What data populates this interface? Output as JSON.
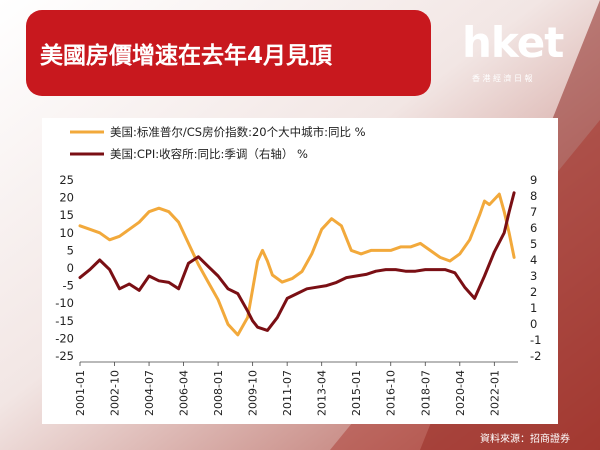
{
  "header": {
    "title": "美國房價增速在去年4月見頂",
    "logo_word": "hket",
    "logo_sub": "香港經濟日報"
  },
  "source": "資料來源：招商證券",
  "colors": {
    "banner": "#c8181e",
    "series_cs": "#f2a93b",
    "series_cpi": "#7a0f14"
  },
  "chart_data": {
    "type": "line",
    "legend": [
      "美国:标准普尔/CS房价指数:20个大中城市:同比 %",
      "美国:CPI:收容所:同比:季调（右轴） %"
    ],
    "legend_position": "top-left",
    "x_ticks": [
      "2001-01",
      "2002-10",
      "2004-07",
      "2006-04",
      "2008-01",
      "2009-10",
      "2011-07",
      "2013-04",
      "2015-01",
      "2016-10",
      "2018-07",
      "2020-04",
      "2022-01"
    ],
    "y_left": {
      "ticks": [
        25,
        20,
        15,
        10,
        5,
        0,
        -5,
        -10,
        -15,
        -20,
        -25
      ],
      "range": [
        -25,
        25
      ]
    },
    "y_right": {
      "ticks": [
        9,
        8,
        7,
        6,
        5,
        4,
        3,
        2,
        1,
        0,
        -1,
        -2
      ],
      "range": [
        -2,
        9
      ]
    },
    "series": [
      {
        "name": "美国:标准普尔/CS房价指数:20个大中城市:同比 %",
        "axis": "left",
        "points": [
          [
            "2001-01",
            12
          ],
          [
            "2001-07",
            11
          ],
          [
            "2002-01",
            10
          ],
          [
            "2002-07",
            8
          ],
          [
            "2003-01",
            9
          ],
          [
            "2003-07",
            11
          ],
          [
            "2004-01",
            13
          ],
          [
            "2004-07",
            16
          ],
          [
            "2005-01",
            17
          ],
          [
            "2005-07",
            16
          ],
          [
            "2006-01",
            13
          ],
          [
            "2006-07",
            7
          ],
          [
            "2007-01",
            1
          ],
          [
            "2007-07",
            -4
          ],
          [
            "2008-01",
            -9
          ],
          [
            "2008-07",
            -16
          ],
          [
            "2009-01",
            -19
          ],
          [
            "2009-07",
            -14
          ],
          [
            "2010-01",
            2
          ],
          [
            "2010-04",
            5
          ],
          [
            "2010-07",
            2
          ],
          [
            "2010-10",
            -2
          ],
          [
            "2011-04",
            -4
          ],
          [
            "2011-10",
            -3
          ],
          [
            "2012-04",
            -1
          ],
          [
            "2012-10",
            4
          ],
          [
            "2013-04",
            11
          ],
          [
            "2013-10",
            14
          ],
          [
            "2014-04",
            12
          ],
          [
            "2014-10",
            5
          ],
          [
            "2015-04",
            4
          ],
          [
            "2015-10",
            5
          ],
          [
            "2016-04",
            5
          ],
          [
            "2016-10",
            5
          ],
          [
            "2017-04",
            6
          ],
          [
            "2017-10",
            6
          ],
          [
            "2018-04",
            7
          ],
          [
            "2018-10",
            5
          ],
          [
            "2019-04",
            3
          ],
          [
            "2019-10",
            2
          ],
          [
            "2020-04",
            4
          ],
          [
            "2020-10",
            8
          ],
          [
            "2021-04",
            15
          ],
          [
            "2021-07",
            19
          ],
          [
            "2021-10",
            18
          ],
          [
            "2022-04",
            21
          ],
          [
            "2022-07",
            16
          ],
          [
            "2022-10",
            10
          ],
          [
            "2023-01",
            3
          ]
        ]
      },
      {
        "name": "美国:CPI:收容所:同比:季调（右轴） %",
        "axis": "right",
        "points": [
          [
            "2001-01",
            2.9
          ],
          [
            "2001-07",
            3.4
          ],
          [
            "2002-01",
            4.0
          ],
          [
            "2002-07",
            3.4
          ],
          [
            "2003-01",
            2.2
          ],
          [
            "2003-07",
            2.5
          ],
          [
            "2004-01",
            2.1
          ],
          [
            "2004-07",
            3.0
          ],
          [
            "2005-01",
            2.7
          ],
          [
            "2005-07",
            2.6
          ],
          [
            "2006-01",
            2.2
          ],
          [
            "2006-07",
            3.8
          ],
          [
            "2007-01",
            4.2
          ],
          [
            "2007-07",
            3.6
          ],
          [
            "2008-01",
            3.0
          ],
          [
            "2008-07",
            2.2
          ],
          [
            "2009-01",
            1.9
          ],
          [
            "2009-07",
            0.8
          ],
          [
            "2009-10",
            0.2
          ],
          [
            "2010-01",
            -0.2
          ],
          [
            "2010-07",
            -0.4
          ],
          [
            "2011-01",
            0.4
          ],
          [
            "2011-07",
            1.6
          ],
          [
            "2012-01",
            1.9
          ],
          [
            "2012-07",
            2.2
          ],
          [
            "2013-01",
            2.3
          ],
          [
            "2013-07",
            2.4
          ],
          [
            "2014-01",
            2.6
          ],
          [
            "2014-07",
            2.9
          ],
          [
            "2015-01",
            3.0
          ],
          [
            "2015-07",
            3.1
          ],
          [
            "2016-01",
            3.3
          ],
          [
            "2016-07",
            3.4
          ],
          [
            "2017-01",
            3.4
          ],
          [
            "2017-07",
            3.3
          ],
          [
            "2018-01",
            3.3
          ],
          [
            "2018-07",
            3.4
          ],
          [
            "2019-01",
            3.4
          ],
          [
            "2019-07",
            3.4
          ],
          [
            "2020-01",
            3.2
          ],
          [
            "2020-07",
            2.3
          ],
          [
            "2021-01",
            1.6
          ],
          [
            "2021-07",
            3.0
          ],
          [
            "2022-01",
            4.5
          ],
          [
            "2022-07",
            5.7
          ],
          [
            "2022-10",
            7.0
          ],
          [
            "2023-01",
            8.2
          ]
        ]
      }
    ]
  }
}
